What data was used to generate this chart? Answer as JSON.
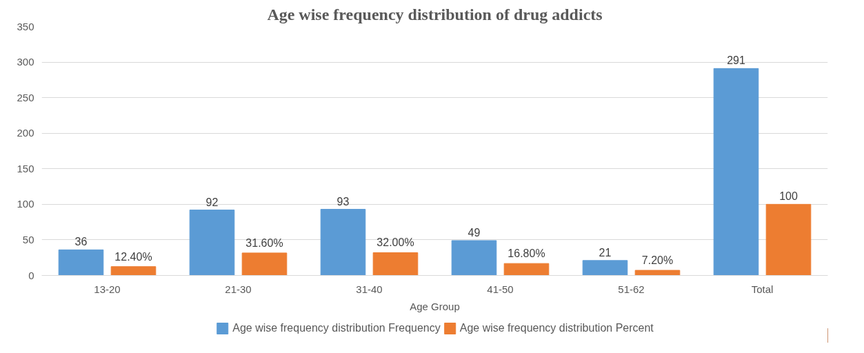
{
  "chart_data": {
    "type": "bar",
    "title": "Age wise frequency distribution of drug addicts",
    "xlabel": "Age Group",
    "categories": [
      "13-20",
      "21-30",
      "31-40",
      "41-50",
      "51-62",
      "Total"
    ],
    "series": [
      {
        "name": "Age wise frequency distribution Frequency",
        "color": "#5b9bd5",
        "values": [
          36,
          92,
          93,
          49,
          21,
          291
        ],
        "value_labels": [
          "36",
          "92",
          "93",
          "49",
          "21",
          "291"
        ]
      },
      {
        "name": "Age wise frequency distribution Percent",
        "color": "#ed7d31",
        "values": [
          12.4,
          31.6,
          32.0,
          16.8,
          7.2,
          100
        ],
        "value_labels": [
          "12.40%",
          "31.60%",
          "32.00%",
          "16.80%",
          "7.20%",
          "100"
        ]
      }
    ],
    "ylim": [
      0,
      350
    ],
    "yticks": [
      0,
      50,
      100,
      150,
      200,
      250,
      300,
      350
    ],
    "grid": "y",
    "legend": "bottom"
  }
}
